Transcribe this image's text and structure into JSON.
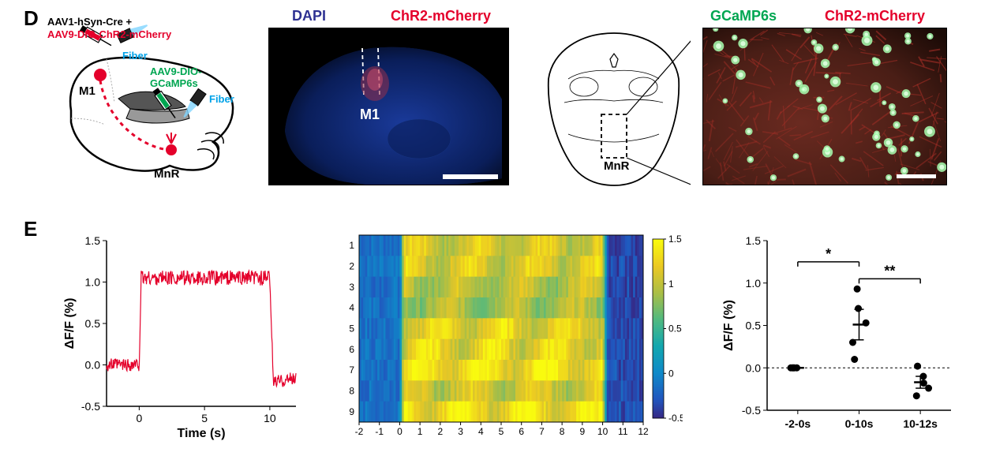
{
  "panelD": {
    "label": "D",
    "schematic": {
      "injections": {
        "M1": {
          "label": "M1",
          "viruses": "AAV1-hSyn-Cre +",
          "virus2": "AAV9-DIO-ChR2-mCherry",
          "virus2_color": "#e4002b",
          "fiber": "Fiber",
          "fiber_color": "#00a2e8"
        },
        "MnR": {
          "label": "MnR",
          "virus": "AAV9-DIO-",
          "virus2": "GCaMP6s",
          "virus_color": "#00a651",
          "fiber": "Fiber",
          "fiber_color": "#00a2e8"
        }
      },
      "projection_color": "#e4002b"
    },
    "micrograph1": {
      "labels": [
        {
          "text": "DAPI",
          "color": "#2e3192"
        },
        {
          "text": "ChR2-mCherry",
          "color": "#e4002b"
        }
      ],
      "region": "M1",
      "background": "#0a1e5a",
      "fiber_track_color": "#ffffff",
      "chr2_color": "#e4002b",
      "region_label_color": "#ffffff",
      "scalebar_width": 70
    },
    "atlas": {
      "region": "MnR",
      "stroke": "#000000"
    },
    "micrograph2": {
      "labels": [
        {
          "text": "GCaMP6s",
          "color": "#00a651"
        },
        {
          "text": "ChR2-mCherry",
          "color": "#e4002b"
        }
      ],
      "background": "#3a1a14",
      "gcamp_color": "#7fff7f",
      "chr2_color": "#b03028",
      "scalebar_width": 50
    }
  },
  "panelE": {
    "label": "E",
    "linechart": {
      "type": "line",
      "xlabel": "Time (s)",
      "ylabel": "ΔF/F (%)",
      "color": "#e4002b",
      "xlim": [
        -2.5,
        12
      ],
      "ylim": [
        -0.5,
        1.5
      ],
      "xticks": [
        0,
        5,
        10
      ],
      "yticks": [
        -0.5,
        0.0,
        0.5,
        1.0,
        1.5
      ],
      "label_fontsize": 16,
      "tick_fontsize": 14,
      "line_width": 1.2,
      "n_points": 400,
      "baseline_noise": 0.08,
      "plateau_level": 1.05,
      "plateau_noise": 0.09,
      "undershoot": -0.12,
      "t_on": 0,
      "t_off": 10
    },
    "heatmap": {
      "type": "heatmap",
      "rows": 9,
      "xlim": [
        -2,
        12
      ],
      "xticks": [
        -2,
        -1,
        0,
        1,
        2,
        3,
        4,
        5,
        6,
        7,
        8,
        9,
        10,
        11,
        12
      ],
      "yticks": [
        1,
        2,
        3,
        4,
        5,
        6,
        7,
        8,
        9
      ],
      "tick_fontsize": 12,
      "colorbar": {
        "ticks": [
          -0.5,
          0,
          0.5,
          1,
          1.5
        ]
      },
      "colormap": "parula",
      "t_on": 0,
      "t_off": 10,
      "peak": 1.5,
      "base": -0.5
    },
    "scatter": {
      "type": "scatter-bar",
      "ylabel": "ΔF/F (%)",
      "ylim": [
        -0.5,
        1.5
      ],
      "yticks": [
        -0.5,
        0.0,
        0.5,
        1.0,
        1.5
      ],
      "xticks": [
        "-2-0s",
        "0-10s",
        "10-12s"
      ],
      "label_fontsize": 16,
      "tick_fontsize": 14,
      "zero_line": true,
      "marker_color": "#000000",
      "marker_radius": 4.5,
      "error_color": "#000000",
      "groups": [
        {
          "label": "-2-0s",
          "points": [
            0.0,
            0.0,
            0.0,
            0.0,
            0.0
          ],
          "mean": 0.0,
          "sem": 0.0
        },
        {
          "label": "0-10s",
          "points": [
            0.1,
            0.3,
            0.53,
            0.7,
            0.93
          ],
          "mean": 0.51,
          "sem": 0.18
        },
        {
          "label": "10-12s",
          "points": [
            -0.33,
            -0.24,
            -0.18,
            -0.1,
            0.02
          ],
          "mean": -0.17,
          "sem": 0.07
        }
      ],
      "sig": [
        {
          "from": 0,
          "to": 1,
          "label": "*",
          "y": 1.25
        },
        {
          "from": 1,
          "to": 2,
          "label": "**",
          "y": 1.05
        }
      ]
    }
  }
}
